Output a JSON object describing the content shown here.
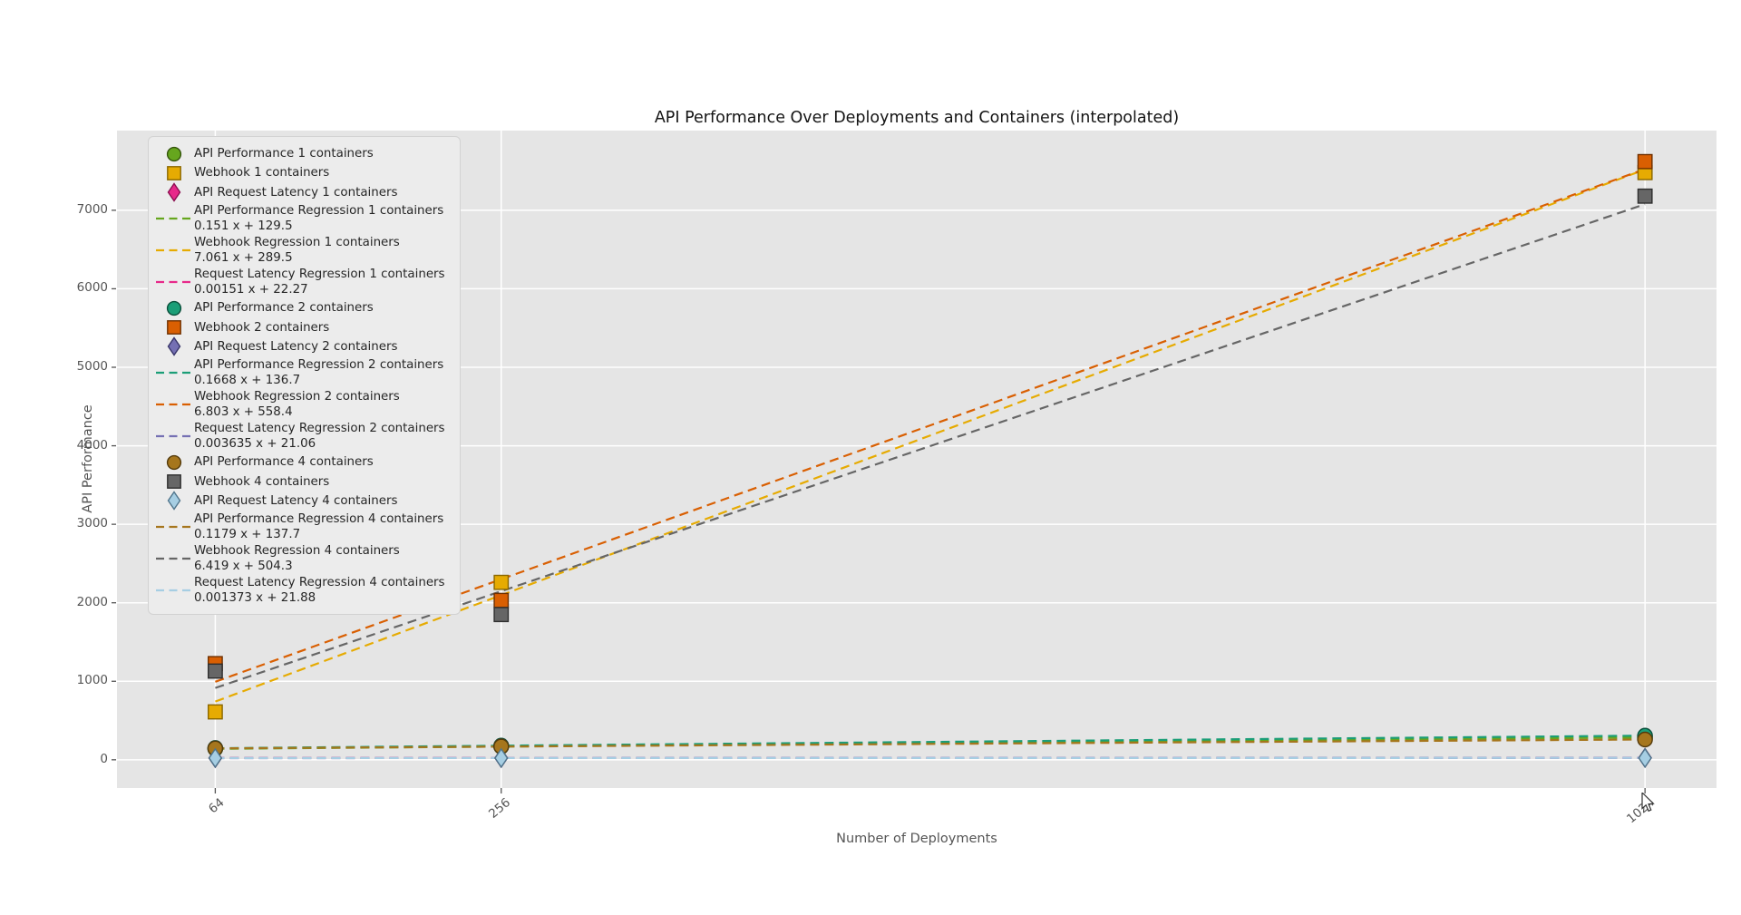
{
  "chart_data": {
    "type": "scatter",
    "title": "API Performance Over Deployments and Containers (interpolated)",
    "xlabel": "Number of Deployments",
    "ylabel": "API Performance",
    "x_ticks": [
      64,
      256,
      1024
    ],
    "y_ticks": [
      0,
      1000,
      2000,
      3000,
      4000,
      5000,
      6000,
      7000
    ],
    "xlim": [
      -2,
      1072
    ],
    "ylim": [
      -360,
      8015
    ],
    "grid": true,
    "legend_position": "upper left",
    "x": [
      64,
      256,
      1024
    ],
    "series": [
      {
        "kind": "scatter",
        "marker": "circle",
        "name": "API Performance 1 containers",
        "color": "#66a61e",
        "edge": "#33530b",
        "values": [
          140,
          168,
          284
        ]
      },
      {
        "kind": "scatter",
        "marker": "square",
        "name": "Webhook 1 containers",
        "color": "#e6ab02",
        "edge": "#8a6700",
        "values": [
          610,
          2260,
          7480
        ]
      },
      {
        "kind": "scatter",
        "marker": "diamond",
        "name": "API Request Latency 1 containers",
        "color": "#e7298a",
        "edge": "#8c0f50",
        "values": [
          22,
          23,
          24
        ]
      },
      {
        "kind": "regression",
        "name": "API Performance Regression 1 containers",
        "equation": "0.151 x + 129.5",
        "slope": 0.151,
        "intercept": 129.5,
        "color": "#66a61e"
      },
      {
        "kind": "regression",
        "name": "Webhook Regression 1 containers",
        "equation": "7.061 x + 289.5",
        "slope": 7.061,
        "intercept": 289.5,
        "color": "#e6ab02"
      },
      {
        "kind": "regression",
        "name": "Request Latency Regression 1 containers",
        "equation": "0.00151 x + 22.27",
        "slope": 0.00151,
        "intercept": 22.27,
        "color": "#e7298a"
      },
      {
        "kind": "scatter",
        "marker": "circle",
        "name": "API Performance 2 containers",
        "color": "#1b9e77",
        "edge": "#0b4f3b",
        "values": [
          150,
          180,
          307
        ]
      },
      {
        "kind": "scatter",
        "marker": "square",
        "name": "Webhook 2 containers",
        "color": "#d95f02",
        "edge": "#6e3001",
        "values": [
          1225,
          2030,
          7620
        ]
      },
      {
        "kind": "scatter",
        "marker": "diamond",
        "name": "API Request Latency 2 containers",
        "color": "#7570b3",
        "edge": "#38356a",
        "values": [
          21,
          22,
          25
        ]
      },
      {
        "kind": "regression",
        "name": "API Performance Regression 2 containers",
        "equation": "0.1668 x + 136.7",
        "slope": 0.1668,
        "intercept": 136.7,
        "color": "#1b9e77"
      },
      {
        "kind": "regression",
        "name": "Webhook Regression 2 containers",
        "equation": "6.803 x + 558.4",
        "slope": 6.803,
        "intercept": 558.4,
        "color": "#d95f02"
      },
      {
        "kind": "regression",
        "name": "Request Latency Regression 2 containers",
        "equation": "0.003635 x + 21.06",
        "slope": 0.003635,
        "intercept": 21.06,
        "color": "#7570b3"
      },
      {
        "kind": "scatter",
        "marker": "circle",
        "name": "API Performance 4 containers",
        "color": "#a6761d",
        "edge": "#533a0c",
        "values": [
          145,
          170,
          258
        ]
      },
      {
        "kind": "scatter",
        "marker": "square",
        "name": "Webhook 4 containers",
        "color": "#666666",
        "edge": "#2e2e2e",
        "values": [
          1130,
          1850,
          7180
        ]
      },
      {
        "kind": "scatter",
        "marker": "diamond",
        "name": "API Request Latency 4 containers",
        "color": "#a6cee3",
        "edge": "#50758c",
        "values": [
          22,
          22,
          23
        ]
      },
      {
        "kind": "regression",
        "name": "API Performance Regression 4 containers",
        "equation": "0.1179 x + 137.7",
        "slope": 0.1179,
        "intercept": 137.7,
        "color": "#a6761d"
      },
      {
        "kind": "regression",
        "name": "Webhook Regression 4 containers",
        "equation": "6.419 x + 504.3",
        "slope": 6.419,
        "intercept": 504.3,
        "color": "#666666"
      },
      {
        "kind": "regression",
        "name": "Request Latency Regression 4 containers",
        "equation": "0.001373 x + 21.88",
        "slope": 0.001373,
        "intercept": 21.88,
        "color": "#a6cee3"
      }
    ]
  },
  "colors": {
    "plot_background": "#e5e5e5",
    "gridline": "#ffffff",
    "tick_text": "#555555",
    "title_text": "#141414",
    "legend_background": "#ececec"
  }
}
